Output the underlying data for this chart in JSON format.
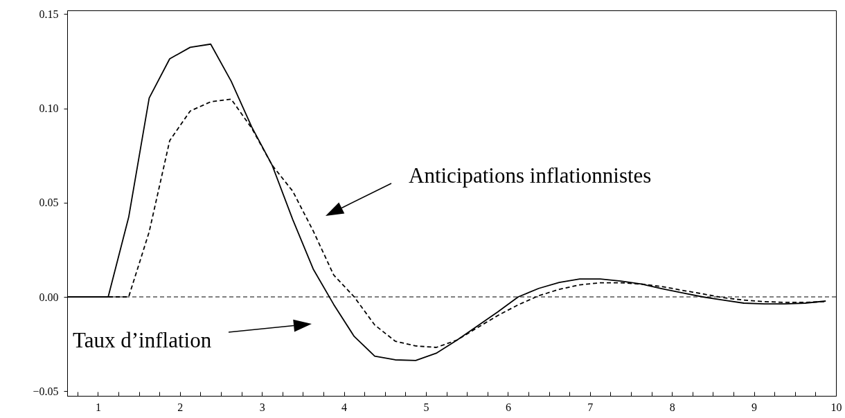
{
  "chart_data": {
    "type": "line",
    "x": [
      0.625,
      0.875,
      1.125,
      1.375,
      1.625,
      1.875,
      2.125,
      2.375,
      2.625,
      2.875,
      3.125,
      3.375,
      3.625,
      3.875,
      4.125,
      4.375,
      4.625,
      4.875,
      5.125,
      5.375,
      5.625,
      5.875,
      6.125,
      6.375,
      6.625,
      6.875,
      7.125,
      7.375,
      7.625,
      7.875,
      8.125,
      8.375,
      8.625,
      8.875,
      9.125,
      9.375,
      9.625,
      9.875
    ],
    "series": [
      {
        "color": "#000000",
        "line_style": "solid",
        "values": [
          0,
          0,
          0,
          0.0423,
          0.1055,
          0.1263,
          0.1324,
          0.1341,
          0.1144,
          0.0902,
          0.0698,
          0.0411,
          0.0148,
          -0.004,
          -0.021,
          -0.0314,
          -0.0334,
          -0.0337,
          -0.0299,
          -0.023,
          -0.0155,
          -0.008,
          0,
          0.0045,
          0.0077,
          0.0095,
          0.0095,
          0.0084,
          0.0068,
          0.0044,
          0.0022,
          0,
          -0.0017,
          -0.0033,
          -0.0037,
          -0.0037,
          -0.0033,
          -0.0022
        ]
      },
      {
        "color": "#000000",
        "line_style": "dashed",
        "values": [
          0,
          0,
          0,
          0,
          0.0345,
          0.0829,
          0.0986,
          0.1035,
          0.1049,
          0.0895,
          0.0698,
          0.0561,
          0.035,
          0.0116,
          0,
          -0.0149,
          -0.0235,
          -0.026,
          -0.0268,
          -0.023,
          -0.0164,
          -0.0099,
          -0.0042,
          0.0006,
          0.004,
          0.0064,
          0.0075,
          0.0075,
          0.0068,
          0.0055,
          0.0035,
          0.0016,
          -0.0004,
          -0.0017,
          -0.0025,
          -0.0029,
          -0.0029,
          -0.0025
        ]
      }
    ],
    "xlim": [
      0.625,
      10
    ],
    "xticks": [
      {
        "value": 0.75,
        "label": null
      },
      1,
      {
        "value": 1.25,
        "label": null
      },
      {
        "value": 1.5,
        "label": null
      },
      {
        "value": 1.75,
        "label": null
      },
      2,
      {
        "value": 2.25,
        "label": null
      },
      {
        "value": 2.5,
        "label": null
      },
      {
        "value": 2.75,
        "label": null
      },
      3,
      {
        "value": 3.25,
        "label": null
      },
      {
        "value": 3.5,
        "label": null
      },
      {
        "value": 3.75,
        "label": null
      },
      4,
      {
        "value": 4.25,
        "label": null
      },
      {
        "value": 4.5,
        "label": null
      },
      {
        "value": 4.75,
        "label": null
      },
      5,
      {
        "value": 5.25,
        "label": null
      },
      {
        "value": 5.5,
        "label": null
      },
      {
        "value": 5.75,
        "label": null
      },
      6,
      {
        "value": 6.25,
        "label": null
      },
      {
        "value": 6.5,
        "label": null
      },
      {
        "value": 6.75,
        "label": null
      },
      7,
      {
        "value": 7.25,
        "label": null
      },
      {
        "value": 7.5,
        "label": null
      },
      {
        "value": 7.75,
        "label": null
      },
      8,
      {
        "value": 8.25,
        "label": null
      },
      {
        "value": 8.5,
        "label": null
      },
      {
        "value": 8.75,
        "label": null
      },
      9,
      {
        "value": 9.25,
        "label": null
      },
      {
        "value": 9.5,
        "label": null
      },
      {
        "value": 9.75,
        "label": null
      },
      10
    ],
    "ylim": [
      -0.0525,
      0.152
    ],
    "yticks": [
      {
        "value": -0.05,
        "label": "−0.05"
      },
      {
        "value": 0,
        "label": "0.00"
      },
      {
        "value": 0.05,
        "label": "0.05"
      },
      {
        "value": 0.1,
        "label": "0.10"
      },
      {
        "value": 0.15,
        "label": "0.15"
      }
    ],
    "ref_lines": [
      {
        "axis": "y",
        "value": 0,
        "color": "#000000",
        "line_style": "dashed"
      }
    ],
    "annotations": [
      "Anticipations inflationnistes",
      "Taux d’inflation"
    ],
    "grid": false
  }
}
